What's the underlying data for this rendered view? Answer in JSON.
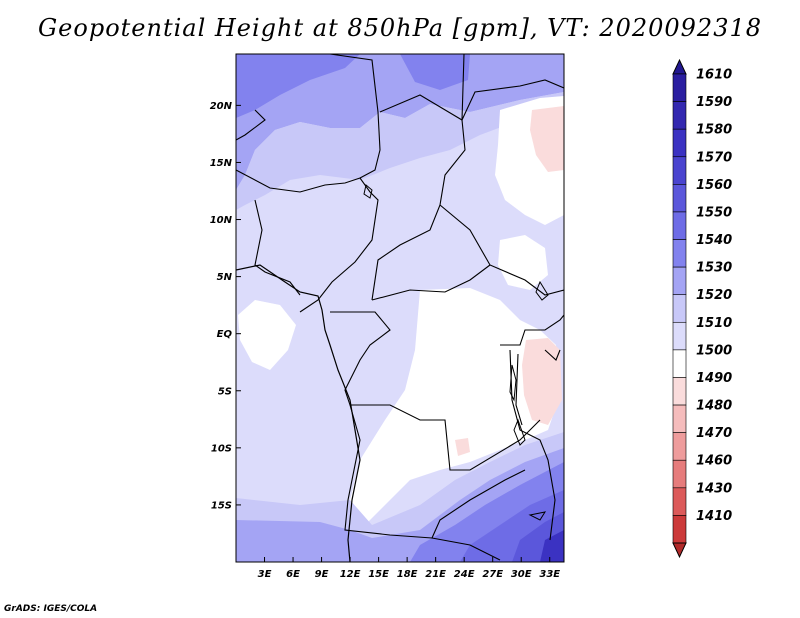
{
  "title": "Geopotential Height at 850hPa [gpm], VT: 2020092318",
  "credit": "GrADS: IGES/COLA",
  "map": {
    "region": "Central Africa",
    "variable": "Geopotential Height",
    "level": "850hPa",
    "units": "gpm",
    "valid_time": "2020092318",
    "lat_range": [
      -20,
      24.5
    ],
    "lon_range": [
      0,
      34.5
    ],
    "lat_ticks": [
      {
        "value": 20,
        "label": "20N"
      },
      {
        "value": 15,
        "label": "15N"
      },
      {
        "value": 10,
        "label": "10N"
      },
      {
        "value": 5,
        "label": "5N"
      },
      {
        "value": 0,
        "label": "EQ"
      },
      {
        "value": -5,
        "label": "5S"
      },
      {
        "value": -10,
        "label": "10S"
      },
      {
        "value": -15,
        "label": "15S"
      }
    ],
    "lon_ticks": [
      {
        "value": 3,
        "label": "3E"
      },
      {
        "value": 6,
        "label": "6E"
      },
      {
        "value": 9,
        "label": "9E"
      },
      {
        "value": 12,
        "label": "12E"
      },
      {
        "value": 15,
        "label": "15E"
      },
      {
        "value": 18,
        "label": "18E"
      },
      {
        "value": 21,
        "label": "21E"
      },
      {
        "value": 24,
        "label": "24E"
      },
      {
        "value": 27,
        "label": "27E"
      },
      {
        "value": 30,
        "label": "30E"
      },
      {
        "value": 33,
        "label": "33E"
      }
    ]
  },
  "colorbar": {
    "levels": [
      {
        "label": "1610",
        "color": "#2a1ea0"
      },
      {
        "label": "1590",
        "color": "#3328b0"
      },
      {
        "label": "1580",
        "color": "#3b32c2"
      },
      {
        "label": "1570",
        "color": "#4a44cf"
      },
      {
        "label": "1560",
        "color": "#5b57db"
      },
      {
        "label": "1550",
        "color": "#6e6ce6"
      },
      {
        "label": "1540",
        "color": "#8282ee"
      },
      {
        "label": "1530",
        "color": "#a4a4f4"
      },
      {
        "label": "1520",
        "color": "#c8c8f8"
      },
      {
        "label": "1510",
        "color": "#dcdcfb"
      },
      {
        "label": "1500",
        "color": "#ffffff"
      },
      {
        "label": "1490",
        "color": "#fadcdc"
      },
      {
        "label": "1480",
        "color": "#f5bcbc"
      },
      {
        "label": "1470",
        "color": "#ee9c9c"
      },
      {
        "label": "1460",
        "color": "#e67c7c"
      },
      {
        "label": "1430",
        "color": "#dc5a5a"
      },
      {
        "label": "1410",
        "color": "#cc3a3a"
      }
    ],
    "top_arrow_color": "#221890",
    "bottom_arrow_color": "#b02a2a"
  }
}
